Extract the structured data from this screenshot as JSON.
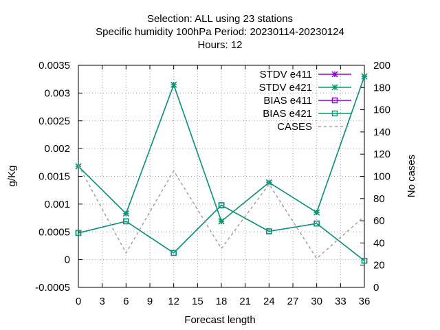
{
  "title_lines": [
    "Selection: ALL using    23 stations",
    "Specific humidity 100hPa   Period: 20230114-20230124",
    "Hours:  12"
  ],
  "colors": {
    "stdv_e411": "#9400d3",
    "stdv_e421": "#009e73",
    "bias_e411": "#9400d3",
    "bias_e421": "#009e73",
    "cases": "#a0a0a0",
    "grid": "#a0a0a0"
  },
  "chart_data": {
    "type": "line",
    "xlabel": "Forecast length",
    "ylabel": "g/Kg",
    "y2label": "No cases",
    "xlim": [
      0,
      36
    ],
    "ylim": [
      -0.0005,
      0.0035
    ],
    "y2lim": [
      0,
      200
    ],
    "x_ticks": [
      "0",
      "3",
      "6",
      "9",
      "12",
      "15",
      "18",
      "21",
      "24",
      "27",
      "30",
      "33",
      "36"
    ],
    "y_ticks": [
      "-0.0005",
      "0",
      "0.0005",
      "0.001",
      "0.0015",
      "0.002",
      "0.0025",
      "0.003",
      "0.0035"
    ],
    "y2_ticks": [
      "0",
      "20",
      "40",
      "60",
      "80",
      "100",
      "120",
      "140",
      "160",
      "180",
      "200"
    ],
    "grid": true,
    "legend_position": "top-right",
    "x": [
      0,
      6,
      12,
      18,
      24,
      30,
      36
    ],
    "series": [
      {
        "name": "STDV e411",
        "axis": "y1",
        "marker": "star",
        "values": [
          0.00168,
          0.00083,
          0.00315,
          0.00069,
          0.00139,
          0.00085,
          0.0033
        ]
      },
      {
        "name": "STDV e421",
        "axis": "y1",
        "marker": "star",
        "values": [
          0.00168,
          0.00083,
          0.00315,
          0.00069,
          0.00139,
          0.00085,
          0.0033
        ]
      },
      {
        "name": "BIAS e411",
        "axis": "y1",
        "marker": "square",
        "values": [
          0.00048,
          0.00069,
          0.00012,
          0.00098,
          0.00051,
          0.00065,
          -2e-05
        ]
      },
      {
        "name": "BIAS e421",
        "axis": "y1",
        "marker": "square",
        "values": [
          0.00048,
          0.00069,
          0.00012,
          0.00098,
          0.00051,
          0.00065,
          -2e-05
        ]
      },
      {
        "name": "CASES",
        "axis": "y2",
        "dashed": true,
        "values": [
          110,
          31,
          105,
          35,
          93,
          26,
          64
        ]
      }
    ]
  }
}
